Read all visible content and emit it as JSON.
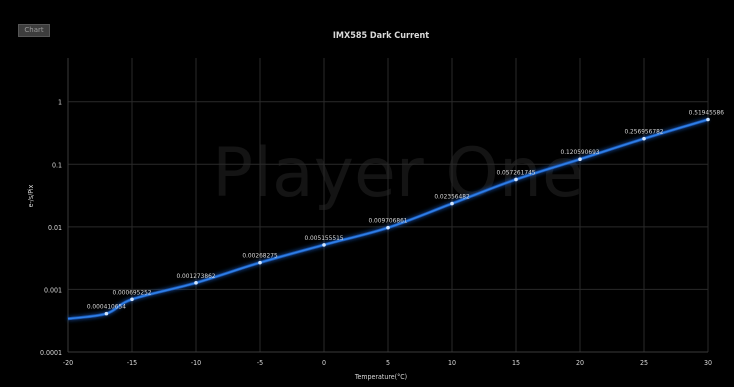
{
  "badge_text": "Chart",
  "watermark": "Player One",
  "colors": {
    "background": "#000000",
    "line": "#2f7fe8",
    "glow": "#1f5fc4",
    "point": "#cfe4ff",
    "grid": "#2a2a2a",
    "text": "#d9d9d9"
  },
  "chart_data": {
    "type": "line",
    "title": "IMX585 Dark Current",
    "xlabel": "Temperature(°C)",
    "ylabel": "e-/s/Pix",
    "xlim": [
      -20,
      30
    ],
    "x_ticks": [
      -20,
      -15,
      -10,
      -5,
      0,
      5,
      10,
      15,
      20,
      25,
      30
    ],
    "y_scale": "log",
    "ylim": [
      0.0001,
      5
    ],
    "y_ticks": [
      0.0001,
      0.001,
      0.01,
      0.1,
      1
    ],
    "y_tick_labels": [
      "0.0001",
      "0.001",
      "0.01",
      "0.1",
      "1"
    ],
    "grid": true,
    "series": [
      {
        "x": [
          -15,
          -10,
          -5,
          0,
          5,
          10,
          15,
          20,
          25,
          30
        ],
        "y": [
          0.000695252,
          0.001273862,
          0.00268275,
          0.005155515,
          0.009706861,
          0.02356482,
          0.057261745,
          0.120590693,
          0.256956782,
          0.51945586
        ],
        "labels": [
          "0.000695252",
          "0.001273862",
          "0.00268275",
          "0.005155515",
          "0.009706861",
          "0.02356482",
          "0.057261745",
          "0.120590693",
          "0.256956782",
          "0.51945586"
        ]
      }
    ],
    "extra_label": {
      "x": -17,
      "y": 0.000410654,
      "text": "0.000410654"
    },
    "line_start": {
      "x": -20,
      "y": 0.00034
    }
  }
}
